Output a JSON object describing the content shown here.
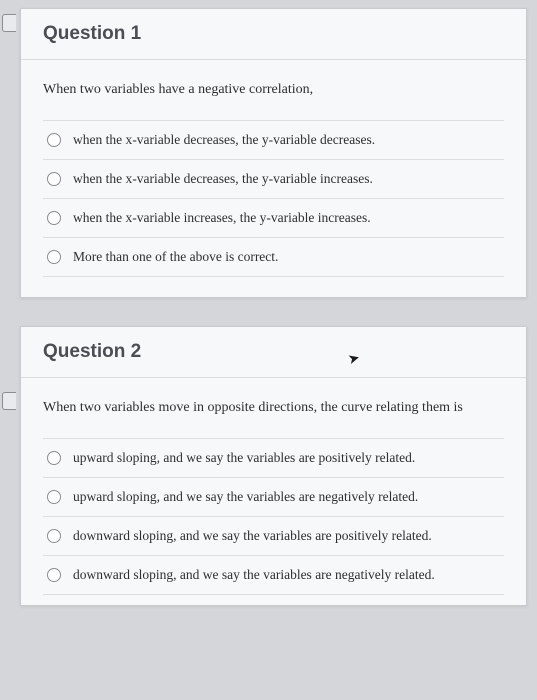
{
  "colors": {
    "page_bg": "#d4d6d9",
    "card_bg": "#f7f8f9",
    "card_border": "#c8cacd",
    "divider": "#dcdee1",
    "title_color": "#4a4e53",
    "text_color": "#2c2e30",
    "radio_border": "#8a8d91"
  },
  "questions": [
    {
      "title": "Question 1",
      "prompt": "When two variables have a negative correlation,",
      "options": [
        "when the x-variable decreases, the y-variable decreases.",
        "when the x-variable decreases, the y-variable increases.",
        "when the x-variable increases, the y-variable increases.",
        "More than one of the above is correct."
      ]
    },
    {
      "title": "Question 2",
      "prompt": "When two variables move in opposite directions, the curve relating them is",
      "options": [
        "upward sloping, and we say the variables are positively related.",
        "upward sloping, and we say the variables are negatively related.",
        "downward sloping, and we say the variables are positively related.",
        "downward sloping, and we say the variables are negatively related."
      ]
    }
  ]
}
